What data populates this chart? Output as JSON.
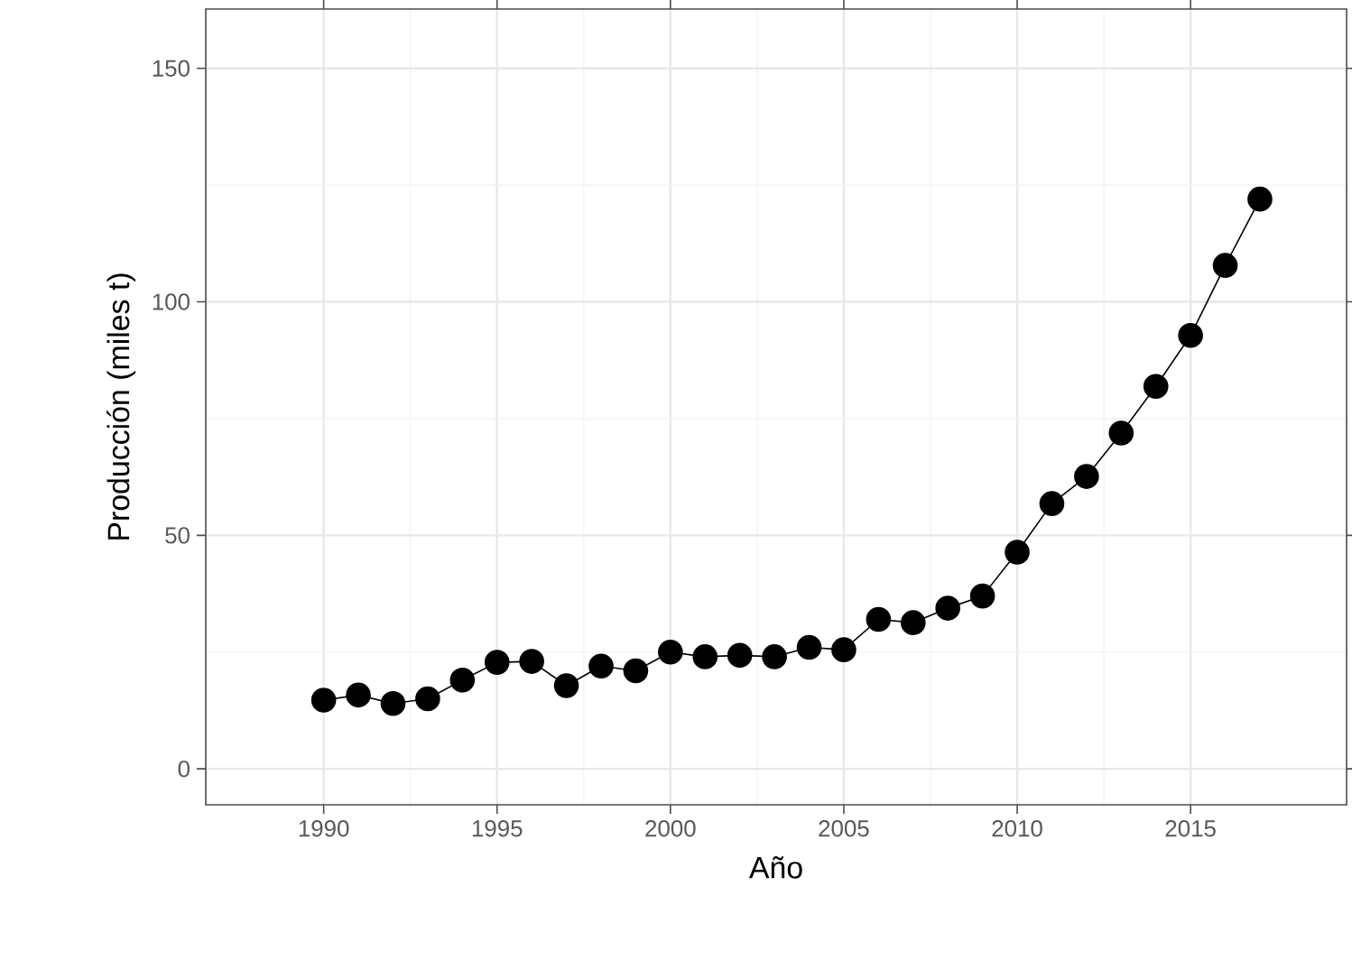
{
  "chart_data": {
    "type": "line",
    "xlabel": "Año",
    "ylabel": "Producción (miles t)",
    "x": [
      1990,
      1991,
      1992,
      1993,
      1994,
      1995,
      1996,
      1997,
      1998,
      1999,
      2000,
      2001,
      2002,
      2003,
      2004,
      2005,
      2006,
      2007,
      2008,
      2009,
      2010,
      2011,
      2012,
      2013,
      2014,
      2015,
      2016,
      2017
    ],
    "values": [
      14.7,
      15.8,
      14,
      15,
      19,
      22.8,
      23,
      17.8,
      22,
      21,
      25,
      24,
      24.3,
      24,
      26,
      25.5,
      32,
      31.3,
      34.4,
      37,
      46.4,
      56.8,
      62.6,
      71.9,
      81.9,
      92.8,
      107.8,
      122
    ],
    "color": "#000000",
    "marker": "circle",
    "line_style": "solid",
    "grid": true,
    "xlim": [
      1986.6,
      2019.5
    ],
    "ylim": [
      -7.7,
      162.7
    ],
    "xticks": [
      1990,
      1995,
      2000,
      2005,
      2010,
      2015
    ],
    "yticks": [
      0,
      50,
      100,
      150
    ]
  }
}
